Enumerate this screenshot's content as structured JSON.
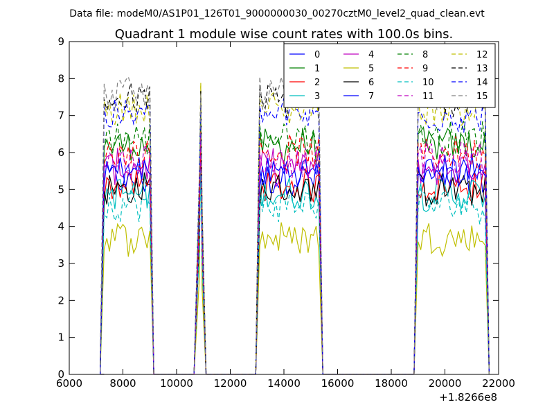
{
  "header": {
    "datafile": "Data file: modeM0/AS1P01_126T01_9000000030_00270cztM0_level2_quad_clean.evt"
  },
  "chart_data": {
    "type": "line",
    "title": "Quadrant 1 module wise count rates with 100.0s bins.",
    "xlabel": "",
    "ylabel": "",
    "xlim": [
      6000,
      22000
    ],
    "ylim": [
      0,
      9
    ],
    "x_offset_label": "+1.8266e8",
    "x_ticks": [
      6000,
      8000,
      10000,
      12000,
      14000,
      16000,
      18000,
      20000,
      22000
    ],
    "x_tick_labels": [
      "6000",
      "8000",
      "10000",
      "12000",
      "14000",
      "16000",
      "18000",
      "20000",
      "22000"
    ],
    "y_ticks": [
      0,
      1,
      2,
      3,
      4,
      5,
      6,
      7,
      8,
      9
    ],
    "y_tick_labels": [
      "0",
      "1",
      "2",
      "3",
      "4",
      "5",
      "6",
      "7",
      "8",
      "9"
    ],
    "grid": false,
    "legend_position": "top-right",
    "segments": [
      {
        "start": 7300,
        "end": 9000
      },
      {
        "start": 10800,
        "end": 10950
      },
      {
        "start": 13100,
        "end": 15300
      },
      {
        "start": 19000,
        "end": 21500
      }
    ],
    "series": [
      {
        "name": "0",
        "color": "#0000ff",
        "dash": "solid",
        "mean": 5.3,
        "peak": 6.8
      },
      {
        "name": "1",
        "color": "#008000",
        "dash": "solid",
        "mean": 6.2,
        "peak": 7.5
      },
      {
        "name": "2",
        "color": "#ff0000",
        "dash": "solid",
        "mean": 5.1,
        "peak": 6.2
      },
      {
        "name": "3",
        "color": "#00bfbf",
        "dash": "solid",
        "mean": 4.9,
        "peak": 6.0
      },
      {
        "name": "4",
        "color": "#bf00bf",
        "dash": "solid",
        "mean": 5.6,
        "peak": 6.9
      },
      {
        "name": "5",
        "color": "#bfbf00",
        "dash": "solid",
        "mean": 3.7,
        "peak": 7.8
      },
      {
        "name": "6",
        "color": "#000000",
        "dash": "solid",
        "mean": 5.0,
        "peak": 7.3
      },
      {
        "name": "7",
        "color": "#0000ff",
        "dash": "solid",
        "mean": 5.5,
        "peak": 6.4
      },
      {
        "name": "8",
        "color": "#008000",
        "dash": "dashed",
        "mean": 6.4,
        "peak": 7.0
      },
      {
        "name": "9",
        "color": "#ff0000",
        "dash": "dashed",
        "mean": 6.0,
        "peak": 6.6
      },
      {
        "name": "10",
        "color": "#00bfbf",
        "dash": "dashed",
        "mean": 4.6,
        "peak": 5.5
      },
      {
        "name": "11",
        "color": "#bf00bf",
        "dash": "dashed",
        "mean": 5.8,
        "peak": 6.5
      },
      {
        "name": "12",
        "color": "#bfbf00",
        "dash": "dashed",
        "mean": 7.2,
        "peak": 7.9
      },
      {
        "name": "13",
        "color": "#000000",
        "dash": "dashed",
        "mean": 7.4,
        "peak": 7.7
      },
      {
        "name": "14",
        "color": "#0000ff",
        "dash": "dashed",
        "mean": 7.0,
        "peak": 7.4
      },
      {
        "name": "15",
        "color": "#808080",
        "dash": "dashed",
        "mean": 7.6,
        "peak": 7.6
      }
    ]
  }
}
